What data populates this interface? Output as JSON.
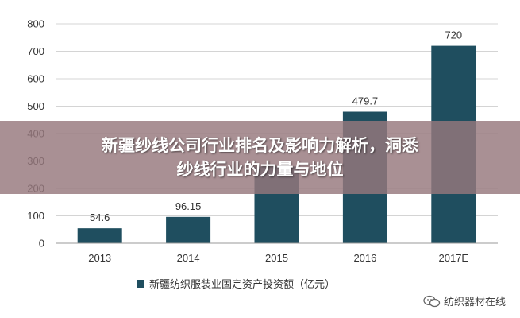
{
  "chart_data": {
    "type": "bar",
    "categories": [
      "2013",
      "2014",
      "2015",
      "2016",
      "2017E"
    ],
    "series": [
      {
        "name": "新疆纺织服装业固定资产投资额（亿元）",
        "values": [
          54.6,
          96.15,
          280,
          479.7,
          720
        ],
        "data_labels": [
          "54.6",
          "96.15",
          "",
          "479.7",
          "720"
        ]
      }
    ],
    "ylim": [
      0,
      800
    ],
    "yticks": [
      "0",
      "100",
      "200",
      "300",
      "400",
      "500",
      "600",
      "700",
      "800"
    ],
    "grid": true,
    "legend": "bottom",
    "bar_color": "#1f4e5f"
  },
  "banner": {
    "line1": "新疆纱线公司行业排名及影响力解析，洞悉",
    "line2": "纱线行业的力量与地位"
  },
  "brand": {
    "text": "纺织器材在线",
    "icon": "wechat-icon"
  }
}
